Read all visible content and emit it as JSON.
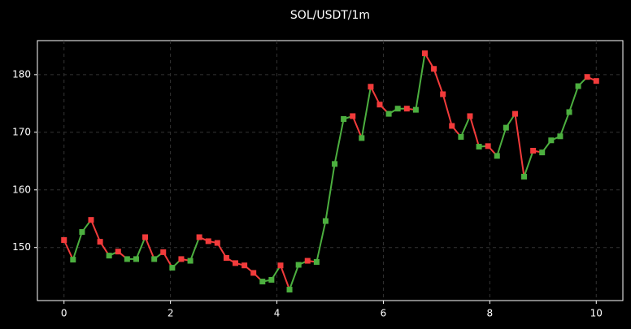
{
  "chart_data": {
    "type": "line",
    "title": "SOL/USDT/1m",
    "x": [
      0,
      0.169,
      0.339,
      0.508,
      0.678,
      0.847,
      1.017,
      1.186,
      1.356,
      1.525,
      1.695,
      1.864,
      2.034,
      2.203,
      2.373,
      2.542,
      2.712,
      2.881,
      3.051,
      3.22,
      3.39,
      3.559,
      3.729,
      3.898,
      4.068,
      4.237,
      4.407,
      4.576,
      4.746,
      4.915,
      5.085,
      5.254,
      5.424,
      5.593,
      5.763,
      5.932,
      6.102,
      6.271,
      6.441,
      6.61,
      6.78,
      6.949,
      7.119,
      7.288,
      7.458,
      7.627,
      7.797,
      7.966,
      8.136,
      8.305,
      8.475,
      8.644,
      8.814,
      8.983,
      9.153,
      9.322,
      9.492,
      9.661,
      9.831,
      10
    ],
    "values": [
      151.3,
      147.9,
      152.7,
      154.8,
      151.0,
      148.6,
      149.3,
      148.0,
      148.0,
      151.8,
      148.0,
      149.2,
      146.5,
      148.0,
      147.7,
      151.8,
      151.1,
      150.8,
      148.2,
      147.3,
      146.9,
      145.6,
      144.1,
      144.4,
      146.9,
      142.7,
      147.0,
      147.7,
      147.5,
      154.6,
      164.5,
      172.3,
      172.8,
      169.0,
      177.9,
      174.8,
      173.2,
      174.1,
      174.1,
      173.9,
      183.7,
      181.0,
      176.6,
      171.1,
      169.2,
      172.8,
      167.5,
      167.6,
      165.9,
      170.8,
      173.2,
      162.3,
      166.8,
      166.5,
      168.6,
      169.3,
      173.5,
      178.0,
      179.6,
      178.9
    ],
    "up_color": "#4caf3f",
    "down_color": "#f23b3b",
    "xlim": [
      -0.5,
      10.5
    ],
    "xticks": [
      0,
      2,
      4,
      6,
      8,
      10
    ],
    "ylim": [
      140.8,
      185.9
    ],
    "yticks": [
      150,
      160,
      170,
      180
    ],
    "grid": true
  }
}
